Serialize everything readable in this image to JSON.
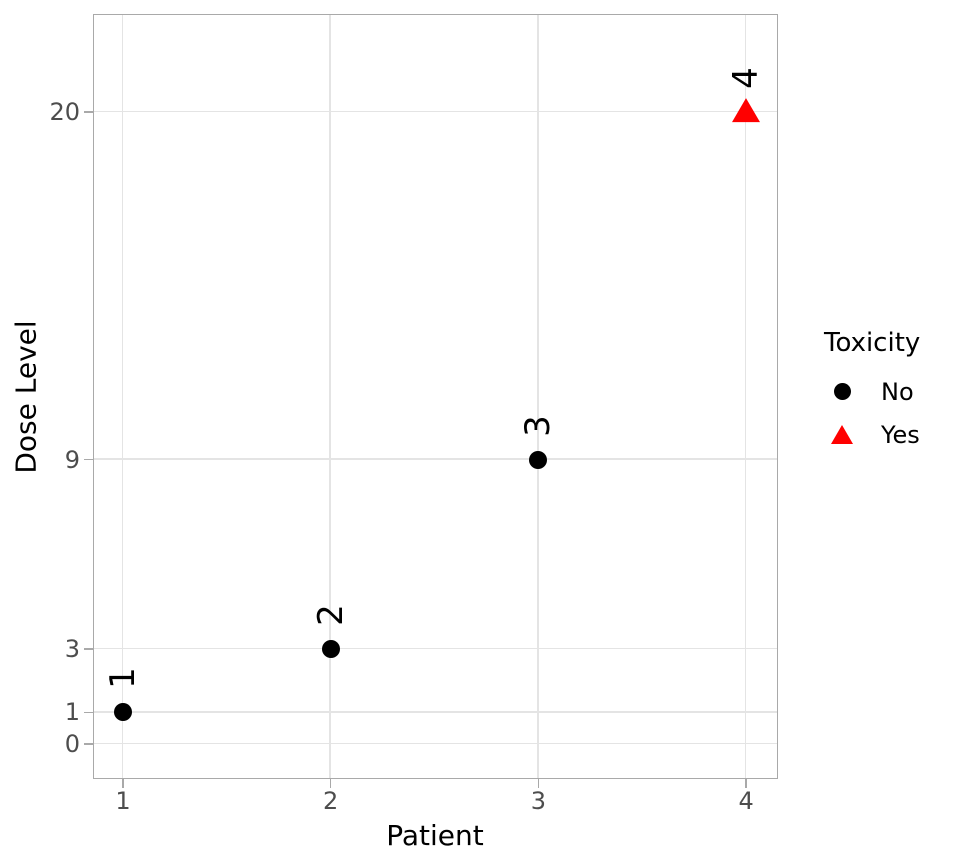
{
  "chart_data": {
    "type": "scatter",
    "title": "",
    "xlabel": "Patient",
    "ylabel": "Dose Level",
    "x_ticks": [
      1,
      2,
      3,
      4
    ],
    "y_ticks": [
      0,
      1,
      3,
      9,
      20
    ],
    "xlim": [
      0.85,
      4.15
    ],
    "ylim": [
      -1.1,
      23.1
    ],
    "grid": "major-only",
    "legend_position": "right",
    "point_label_rotation_deg": 90,
    "series": [
      {
        "name": "No",
        "marker": "circle",
        "color": "#000000",
        "points": [
          {
            "x": 1,
            "y": 1,
            "label": "1"
          },
          {
            "x": 2,
            "y": 3,
            "label": "2"
          },
          {
            "x": 3,
            "y": 9,
            "label": "3"
          }
        ]
      },
      {
        "name": "Yes",
        "marker": "triangle",
        "color": "#ff0000",
        "points": [
          {
            "x": 4,
            "y": 20,
            "label": "4"
          }
        ]
      }
    ]
  },
  "legend": {
    "title": "Toxicity",
    "items": [
      {
        "label": "No",
        "marker": "circle",
        "color": "#000000"
      },
      {
        "label": "Yes",
        "marker": "triangle",
        "color": "#ff0000"
      }
    ]
  },
  "style": {
    "background": "#ffffff",
    "grid_color": "#e4e4e4",
    "panel_border_color": "#a9a9a9",
    "tick_color": "#a9a9a9",
    "tick_label_color": "#4d4d4d",
    "text_color": "#000000"
  }
}
